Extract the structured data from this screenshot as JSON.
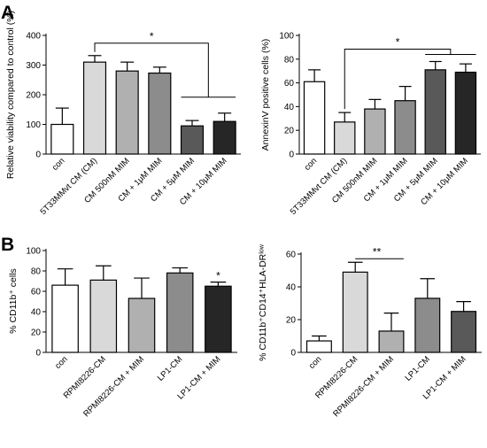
{
  "panels": {
    "A": {
      "label": "A"
    },
    "B": {
      "label": "B"
    }
  },
  "colors": {
    "con": "#ffffff",
    "light": "#d9d9d9",
    "mid_light": "#b0b0b0",
    "mid": "#8c8c8c",
    "dark": "#595959",
    "darkest": "#262626",
    "stroke": "#000000"
  },
  "chart_data": [
    {
      "id": "A1",
      "type": "bar",
      "ylabel": "Relative viability compared to control (%)",
      "ylim": [
        0,
        400
      ],
      "yticks": [
        0,
        100,
        200,
        300,
        400
      ],
      "categories": [
        "con",
        "5T33MMvt CM (CM)",
        "CM 500nM MIM",
        "CM + 1μM MIM",
        "CM + 5μM MIM",
        "CM + 10μM MIM"
      ],
      "values": [
        100,
        310,
        280,
        273,
        95,
        110
      ],
      "errors": [
        55,
        22,
        30,
        20,
        18,
        28
      ],
      "fills": [
        "#ffffff",
        "#d9d9d9",
        "#b0b0b0",
        "#8c8c8c",
        "#595959",
        "#262626"
      ],
      "significance": [
        {
          "label": "*",
          "from": 1,
          "to_group": [
            4,
            5
          ]
        }
      ]
    },
    {
      "id": "A2",
      "type": "bar",
      "ylabel": "AnnexinV positive cells (%)",
      "ylim": [
        0,
        100
      ],
      "yticks": [
        0,
        20,
        40,
        60,
        80,
        100
      ],
      "categories": [
        "con",
        "5T33MMvt CM (CM)",
        "CM 500nM MIM",
        "CM + 1μM MIM",
        "CM + 5μM MIM",
        "CM + 10μM MIM"
      ],
      "values": [
        61,
        27,
        38,
        45,
        71,
        69
      ],
      "errors": [
        10,
        8,
        8,
        12,
        7,
        7
      ],
      "fills": [
        "#ffffff",
        "#d9d9d9",
        "#b0b0b0",
        "#8c8c8c",
        "#595959",
        "#262626"
      ],
      "significance": [
        {
          "label": "*",
          "from": 1,
          "to_group": [
            4,
            5
          ]
        }
      ]
    },
    {
      "id": "B1",
      "type": "bar",
      "ylabel": "% CD11b⁺ cells",
      "ylim": [
        0,
        100
      ],
      "yticks": [
        0,
        20,
        40,
        60,
        80,
        100
      ],
      "categories": [
        "con",
        "RPMI8226-CM",
        "RPMI8226-CM + MIM",
        "LP1-CM",
        "LP1-CM + MIM"
      ],
      "values": [
        66,
        71,
        53,
        78,
        65
      ],
      "errors": [
        16,
        14,
        20,
        5,
        4
      ],
      "fills": [
        "#ffffff",
        "#d9d9d9",
        "#b0b0b0",
        "#8c8c8c",
        "#262626"
      ],
      "star": {
        "label": "*",
        "index": 4
      }
    },
    {
      "id": "B2",
      "type": "bar",
      "ylabel": "% CD11b⁺CD14⁺HLA-DRˡᵒʷ",
      "ylim": [
        0,
        60
      ],
      "yticks": [
        0,
        20,
        40,
        60
      ],
      "categories": [
        "con",
        "RPMI8226-CM",
        "RPMI8226-CM + MIM",
        "LP1-CM",
        "LP1-CM + MIM"
      ],
      "values": [
        7,
        49,
        13,
        33,
        25
      ],
      "errors": [
        3,
        6,
        11,
        12,
        6
      ],
      "fills": [
        "#ffffff",
        "#d9d9d9",
        "#b0b0b0",
        "#8c8c8c",
        "#595959"
      ],
      "significance": [
        {
          "label": "**",
          "from": 1,
          "to": 2
        }
      ]
    }
  ]
}
